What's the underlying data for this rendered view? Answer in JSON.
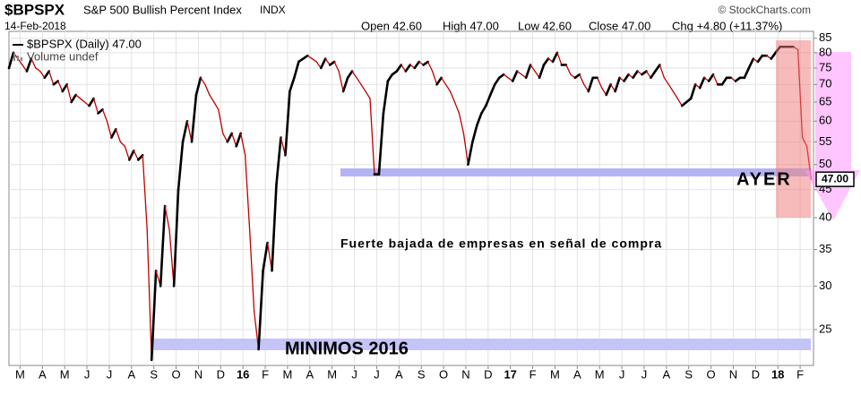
{
  "header": {
    "symbol": "$BPSPX",
    "name": "S&P 500 Bullish Percent Index",
    "exchange": "INDX",
    "date": "14-Feb-2018",
    "open": "Open 42.60",
    "high": "High 47.00",
    "low": "Low 42.60",
    "close": "Close 47.00",
    "chg": "Chg +4.80 (+11.37%)",
    "copyright": "© StockCharts.com"
  },
  "chart_data": {
    "type": "line",
    "log_scale": true,
    "grid": true,
    "legend": [
      "$BPSPX (Daily) 47.00",
      "Volume undef"
    ],
    "annotations": [
      "AYER",
      "Fuerte bajada de empresas en señal de compra",
      "MINIMOS 2016"
    ],
    "last_value_label": "47.00",
    "xlim": [
      -0.5,
      35.6
    ],
    "ylim": [
      21.5,
      87.5
    ],
    "yticks": [
      25,
      30,
      35,
      40,
      45,
      50,
      55,
      60,
      65,
      70,
      75,
      80,
      85
    ],
    "xticks": [
      {
        "value": 0,
        "label": "M"
      },
      {
        "value": 1,
        "label": "A"
      },
      {
        "value": 2,
        "label": "M"
      },
      {
        "value": 3,
        "label": "J"
      },
      {
        "value": 4,
        "label": "J"
      },
      {
        "value": 5,
        "label": "A"
      },
      {
        "value": 6,
        "label": "S"
      },
      {
        "value": 7,
        "label": "O"
      },
      {
        "value": 8,
        "label": "N"
      },
      {
        "value": 9,
        "label": "D"
      },
      {
        "value": 10,
        "label": "16"
      },
      {
        "value": 11,
        "label": "F"
      },
      {
        "value": 12,
        "label": "M"
      },
      {
        "value": 13,
        "label": "A"
      },
      {
        "value": 14,
        "label": "M"
      },
      {
        "value": 15,
        "label": "J"
      },
      {
        "value": 16,
        "label": "J"
      },
      {
        "value": 17,
        "label": "A"
      },
      {
        "value": 18,
        "label": "S"
      },
      {
        "value": 19,
        "label": "O"
      },
      {
        "value": 20,
        "label": "N"
      },
      {
        "value": 21,
        "label": "D"
      },
      {
        "value": 22,
        "label": "17"
      },
      {
        "value": 23,
        "label": "F"
      },
      {
        "value": 24,
        "label": "M"
      },
      {
        "value": 25,
        "label": "A"
      },
      {
        "value": 26,
        "label": "M"
      },
      {
        "value": 27,
        "label": "J"
      },
      {
        "value": 28,
        "label": "J"
      },
      {
        "value": 29,
        "label": "A"
      },
      {
        "value": 30,
        "label": "S"
      },
      {
        "value": 31,
        "label": "O"
      },
      {
        "value": 32,
        "label": "N"
      },
      {
        "value": 33,
        "label": "D"
      },
      {
        "value": 34,
        "label": "18"
      },
      {
        "value": 35,
        "label": "F"
      }
    ],
    "x": [
      -0.5,
      -0.3,
      -0.1,
      0.1,
      0.3,
      0.5,
      0.7,
      0.9,
      1.1,
      1.3,
      1.5,
      1.7,
      1.9,
      2.1,
      2.3,
      2.5,
      2.7,
      2.9,
      3.1,
      3.3,
      3.5,
      3.7,
      3.9,
      4.1,
      4.3,
      4.5,
      4.7,
      4.9,
      5.1,
      5.3,
      5.5,
      5.7,
      5.9,
      6.1,
      6.3,
      6.5,
      6.7,
      6.9,
      7.1,
      7.3,
      7.5,
      7.7,
      7.9,
      8.1,
      8.3,
      8.5,
      8.7,
      8.9,
      9.1,
      9.3,
      9.5,
      9.7,
      9.9,
      10.1,
      10.3,
      10.5,
      10.7,
      10.9,
      11.1,
      11.3,
      11.5,
      11.7,
      11.9,
      12.1,
      12.3,
      12.5,
      12.7,
      12.9,
      13.1,
      13.3,
      13.5,
      13.7,
      13.9,
      14.1,
      14.3,
      14.5,
      14.7,
      14.9,
      15.1,
      15.3,
      15.5,
      15.7,
      15.9,
      16.1,
      16.3,
      16.5,
      16.7,
      16.9,
      17.1,
      17.3,
      17.5,
      17.7,
      17.9,
      18.1,
      18.3,
      18.5,
      18.7,
      18.9,
      19.1,
      19.3,
      19.5,
      19.7,
      19.9,
      20.1,
      20.3,
      20.5,
      20.7,
      20.9,
      21.1,
      21.3,
      21.5,
      21.7,
      21.9,
      22.1,
      22.3,
      22.5,
      22.7,
      22.9,
      23.1,
      23.3,
      23.5,
      23.7,
      23.9,
      24.1,
      24.3,
      24.5,
      24.7,
      24.9,
      25.1,
      25.3,
      25.5,
      25.7,
      25.9,
      26.1,
      26.3,
      26.5,
      26.7,
      26.9,
      27.1,
      27.3,
      27.5,
      27.7,
      27.9,
      28.1,
      28.3,
      28.5,
      28.7,
      28.9,
      29.1,
      29.3,
      29.5,
      29.7,
      29.9,
      30.1,
      30.3,
      30.5,
      30.7,
      30.9,
      31.1,
      31.3,
      31.5,
      31.7,
      31.9,
      32.1,
      32.3,
      32.5,
      32.7,
      32.9,
      33.1,
      33.3,
      33.5,
      33.7,
      33.9,
      34.1,
      34.3,
      34.5,
      34.7,
      34.9,
      35.1,
      35.3,
      35.5
    ],
    "series": [
      {
        "name": "$BPSPX",
        "color": "#000000",
        "down_color": "#c00000",
        "values": [
          75,
          80,
          78,
          76,
          74,
          78,
          75,
          74,
          72,
          74,
          70,
          71,
          68,
          70,
          65,
          67,
          66,
          65,
          64,
          66,
          62,
          63,
          60,
          56,
          58,
          55,
          54,
          51,
          53,
          51,
          52,
          38,
          22,
          32,
          30,
          42,
          38,
          30,
          45,
          55,
          60,
          55,
          67,
          72,
          70,
          67,
          65,
          63,
          57,
          55,
          57,
          54,
          57,
          52,
          38,
          27,
          23,
          32,
          36,
          32,
          46,
          56,
          52,
          68,
          72,
          77,
          78,
          79,
          78,
          77,
          75,
          78,
          76,
          77,
          74,
          68,
          72,
          74,
          72,
          70,
          68,
          66,
          48,
          48,
          62,
          71,
          73,
          74,
          76,
          74,
          76,
          75,
          77,
          76,
          77,
          74,
          70,
          72,
          70,
          68,
          65,
          62,
          57,
          50,
          55,
          59,
          62,
          64,
          67,
          70,
          72,
          73,
          72,
          71,
          74,
          73,
          72,
          76,
          74,
          72,
          76,
          78,
          77,
          80,
          76,
          76,
          73,
          72,
          73,
          70,
          68,
          72,
          72,
          69,
          67,
          70,
          68,
          72,
          71,
          73,
          72,
          74,
          73,
          74,
          72,
          74,
          76,
          72,
          70,
          68,
          66,
          64,
          65,
          66,
          70,
          69,
          72,
          71,
          73,
          70,
          70,
          72,
          72,
          71,
          72,
          72,
          75,
          78,
          77,
          79,
          79,
          78,
          80,
          82,
          82,
          82,
          82,
          81,
          56,
          54,
          47
        ]
      }
    ]
  }
}
